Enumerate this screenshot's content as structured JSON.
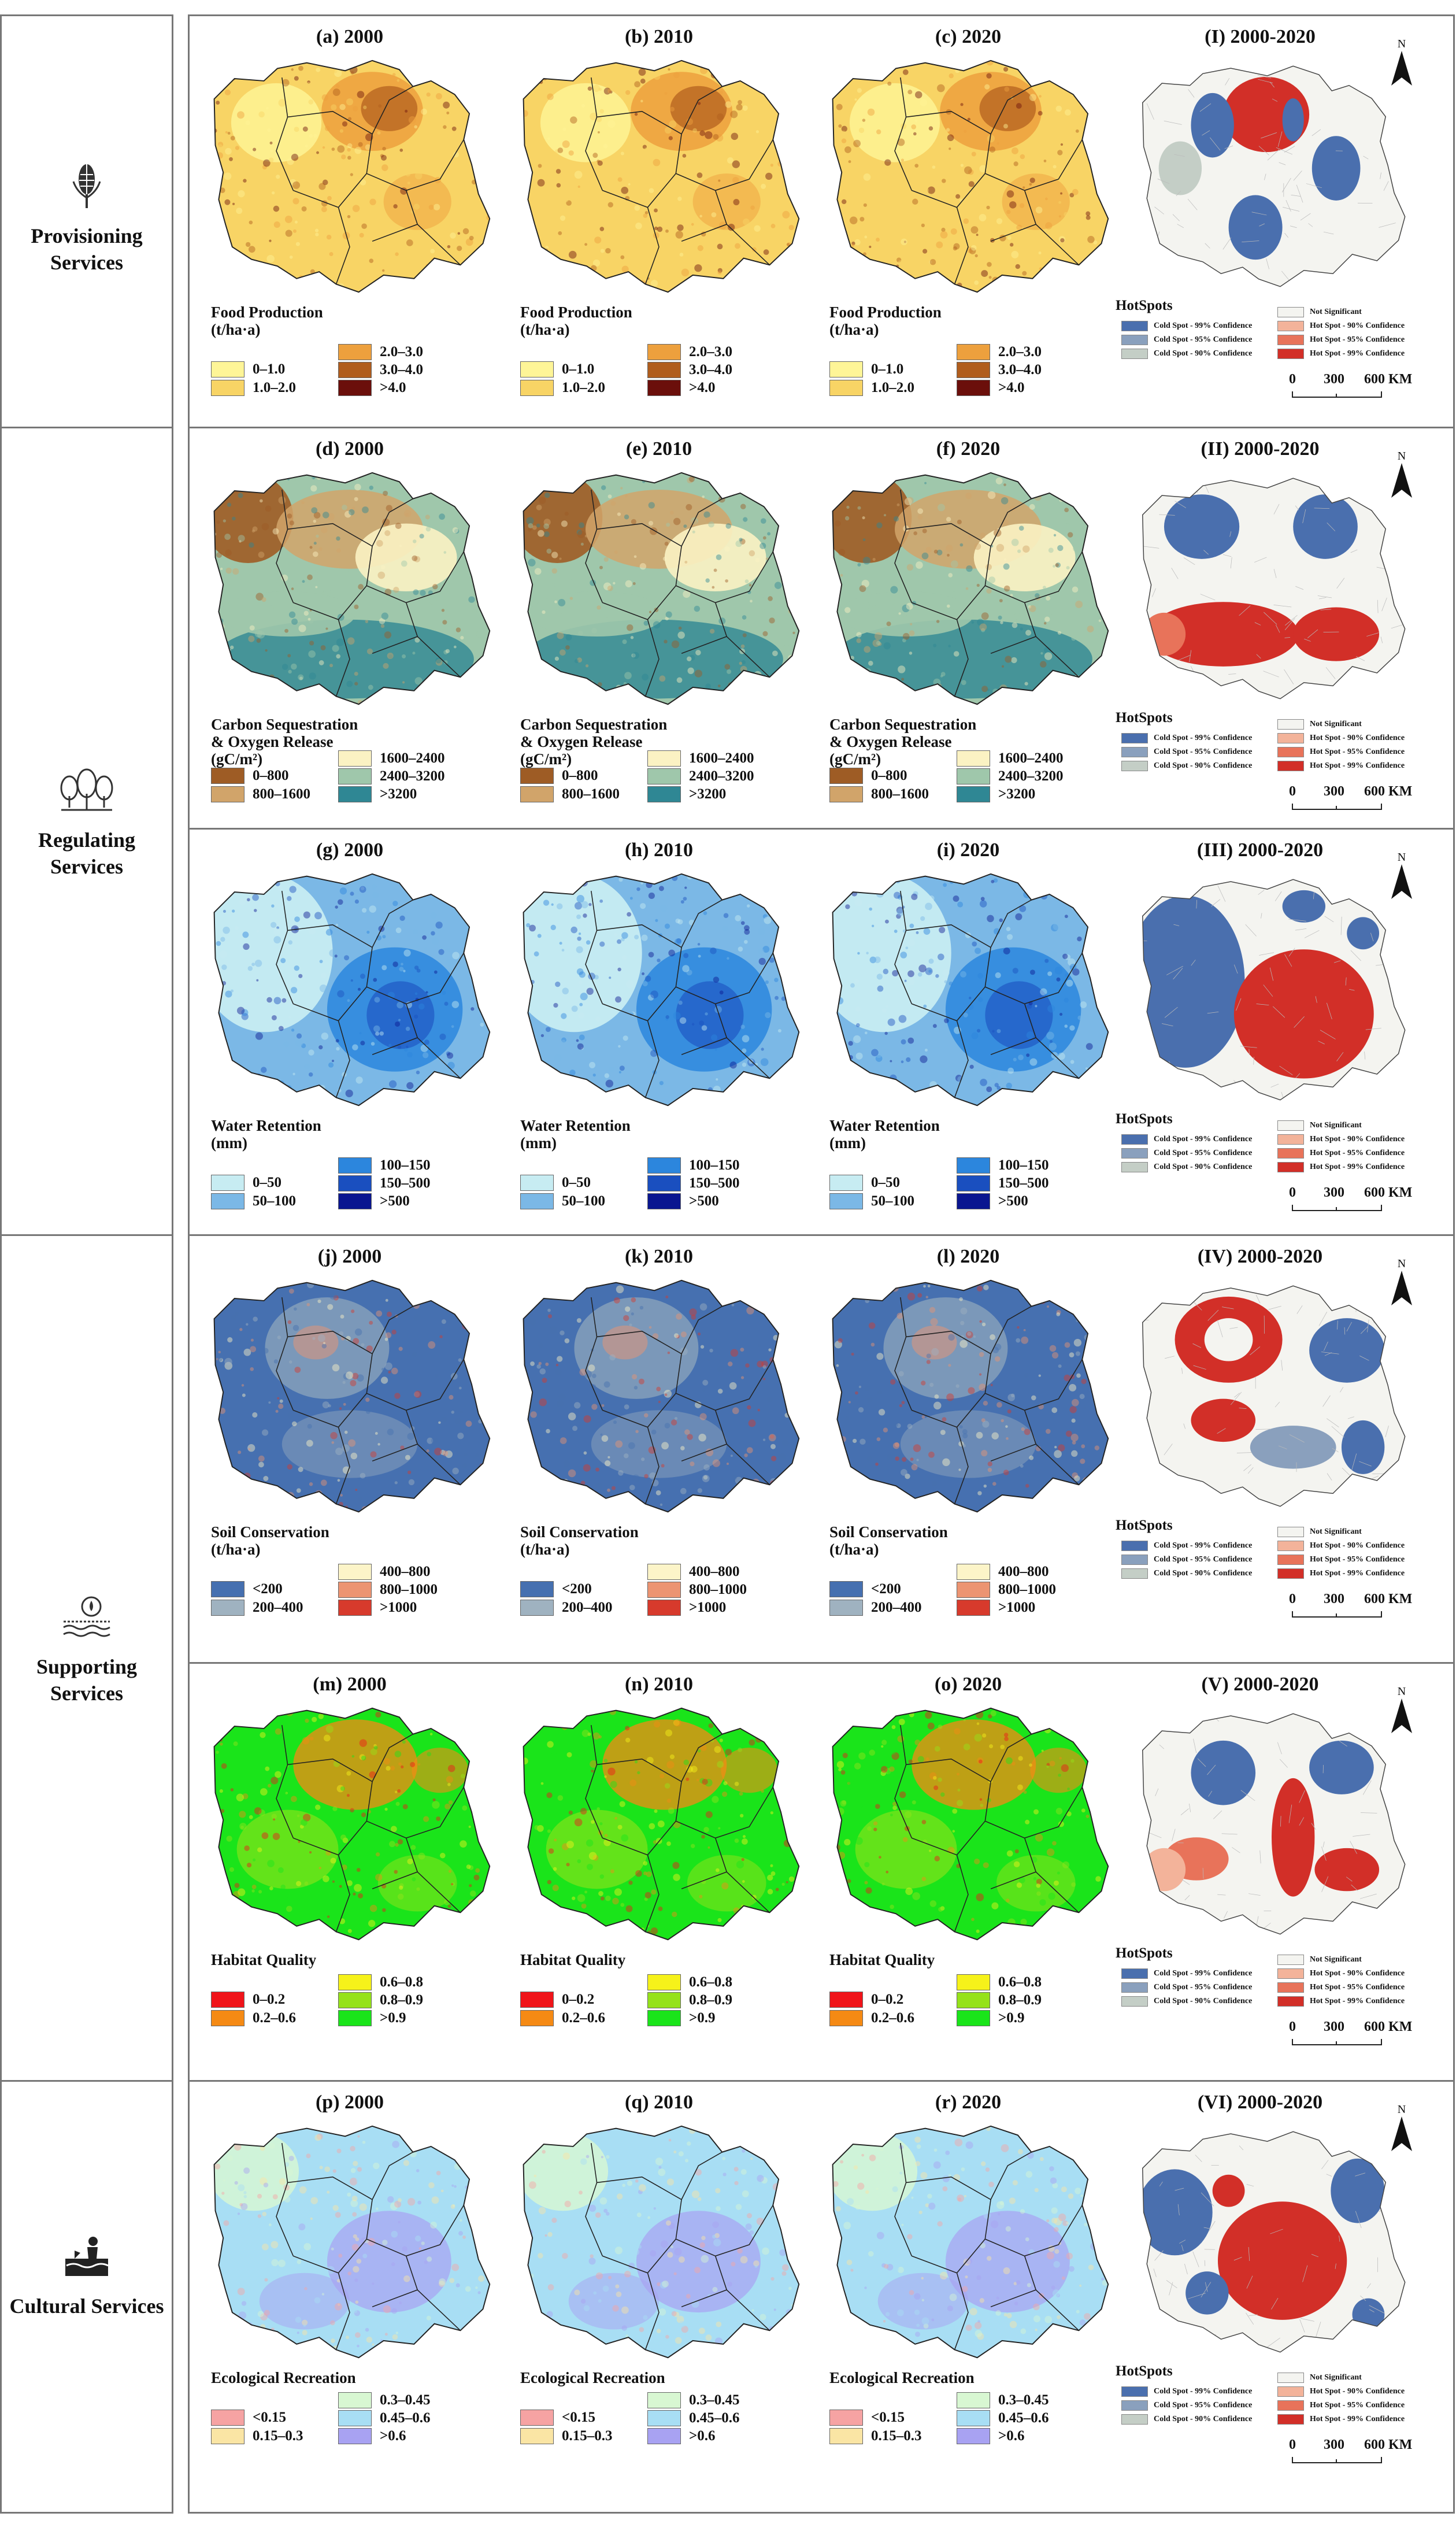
{
  "categories": [
    {
      "id": "provisioning",
      "label": "Provisioning Services",
      "icon": "grain-icon"
    },
    {
      "id": "regulating",
      "label": "Regulating Services",
      "icon": "trees-icon"
    },
    {
      "id": "supporting",
      "label": "Supporting Services",
      "icon": "water-soil-icon"
    },
    {
      "id": "cultural",
      "label": "Cultural Services",
      "icon": "recreation-icon"
    }
  ],
  "rows": [
    {
      "id": "food",
      "years": [
        "(a) 2000",
        "(b) 2010",
        "(c) 2020"
      ],
      "hot_title": "(I) 2000-2020",
      "legend_title": [
        "Food Production",
        "(t/ha·a)"
      ],
      "classes": [
        {
          "label": "0–1.0",
          "color": "#fef597"
        },
        {
          "label": "1.0–2.0",
          "color": "#f8d465"
        },
        {
          "label": "2.0–3.0",
          "color": "#eda03d"
        },
        {
          "label": "3.0–4.0",
          "color": "#b05d1d"
        },
        {
          "label": ">4.0",
          "color": "#6b0f0b"
        }
      ]
    },
    {
      "id": "carbon",
      "years": [
        "(d) 2000",
        "(e) 2010",
        "(f) 2020"
      ],
      "hot_title": "(II) 2000-2020",
      "legend_title": [
        "Carbon Sequestration",
        "& Oxygen  Release",
        "(gC/m²)"
      ],
      "classes": [
        {
          "label": "0–800",
          "color": "#9e5c25"
        },
        {
          "label": "800–1600",
          "color": "#d1a46a"
        },
        {
          "label": "1600–2400",
          "color": "#fbf2c3"
        },
        {
          "label": "2400–3200",
          "color": "#9fc7ab"
        },
        {
          "label": ">3200",
          "color": "#2f8794"
        }
      ]
    },
    {
      "id": "water",
      "years": [
        "(g) 2000",
        "(h) 2010",
        "(i) 2020"
      ],
      "hot_title": "(III) 2000-2020",
      "legend_title": [
        "Water Retention",
        "(mm)"
      ],
      "classes": [
        {
          "label": "0–50",
          "color": "#c7ecf2"
        },
        {
          "label": "50–100",
          "color": "#7bb8e6"
        },
        {
          "label": "100–150",
          "color": "#2c86dd"
        },
        {
          "label": "150–500",
          "color": "#1a4fbf"
        },
        {
          "label": ">500",
          "color": "#0a1690"
        }
      ]
    },
    {
      "id": "soil",
      "years": [
        "(j) 2000",
        "(k) 2010",
        "(l) 2020"
      ],
      "hot_title": "(IV) 2000-2020",
      "legend_title": [
        "Soil Conservation",
        "(t/ha·a)"
      ],
      "classes": [
        {
          "label": "<200",
          "color": "#4670b0"
        },
        {
          "label": "200–400",
          "color": "#9fb2c0"
        },
        {
          "label": "400–800",
          "color": "#fcf4c8"
        },
        {
          "label": "800–1000",
          "color": "#ec9472"
        },
        {
          "label": ">1000",
          "color": "#d73a2c"
        }
      ]
    },
    {
      "id": "habitat",
      "years": [
        "(m) 2000",
        "(n) 2010",
        "(o) 2020"
      ],
      "hot_title": "(V) 2000-2020",
      "legend_title": [
        "Habitat Quality"
      ],
      "classes": [
        {
          "label": "0–0.2",
          "color": "#f0141a"
        },
        {
          "label": "0.2–0.6",
          "color": "#f58a14"
        },
        {
          "label": "0.6–0.8",
          "color": "#f6f21a"
        },
        {
          "label": "0.8–0.9",
          "color": "#95e21a"
        },
        {
          "label": ">0.9",
          "color": "#1ae41a"
        }
      ]
    },
    {
      "id": "recreation",
      "years": [
        "(p) 2000",
        "(q) 2010",
        "(r) 2020"
      ],
      "hot_title": "(VI) 2000-2020",
      "legend_title": [
        "Ecological Recreation"
      ],
      "classes": [
        {
          "label": "<0.15",
          "color": "#f6a3a3"
        },
        {
          "label": "0.15–0.3",
          "color": "#fae5a4"
        },
        {
          "label": "0.3–0.45",
          "color": "#d8f7d2"
        },
        {
          "label": "0.45–0.6",
          "color": "#a8def4"
        },
        {
          "label": ">0.6",
          "color": "#a8a2f2"
        }
      ]
    }
  ],
  "hotspot_legend": {
    "title": "HotSpots",
    "items": [
      {
        "label": "Cold Spot - 99% Confidence",
        "color": "#4a6fae"
      },
      {
        "label": "Cold Spot - 95% Confidence",
        "color": "#8aa0bd"
      },
      {
        "label": "Cold Spot - 90% Confidence",
        "color": "#c4cec6"
      },
      {
        "label": "Not Significant",
        "color": "#f4f4f0"
      },
      {
        "label": "Hot Spot - 90% Confidence",
        "color": "#f3b39a"
      },
      {
        "label": "Hot Spot - 95% Confidence",
        "color": "#e8735a"
      },
      {
        "label": "Hot Spot - 99% Confidence",
        "color": "#d22f28"
      }
    ]
  },
  "north_label": "N",
  "scale_labels": [
    "0",
    "300",
    "600 KM"
  ]
}
